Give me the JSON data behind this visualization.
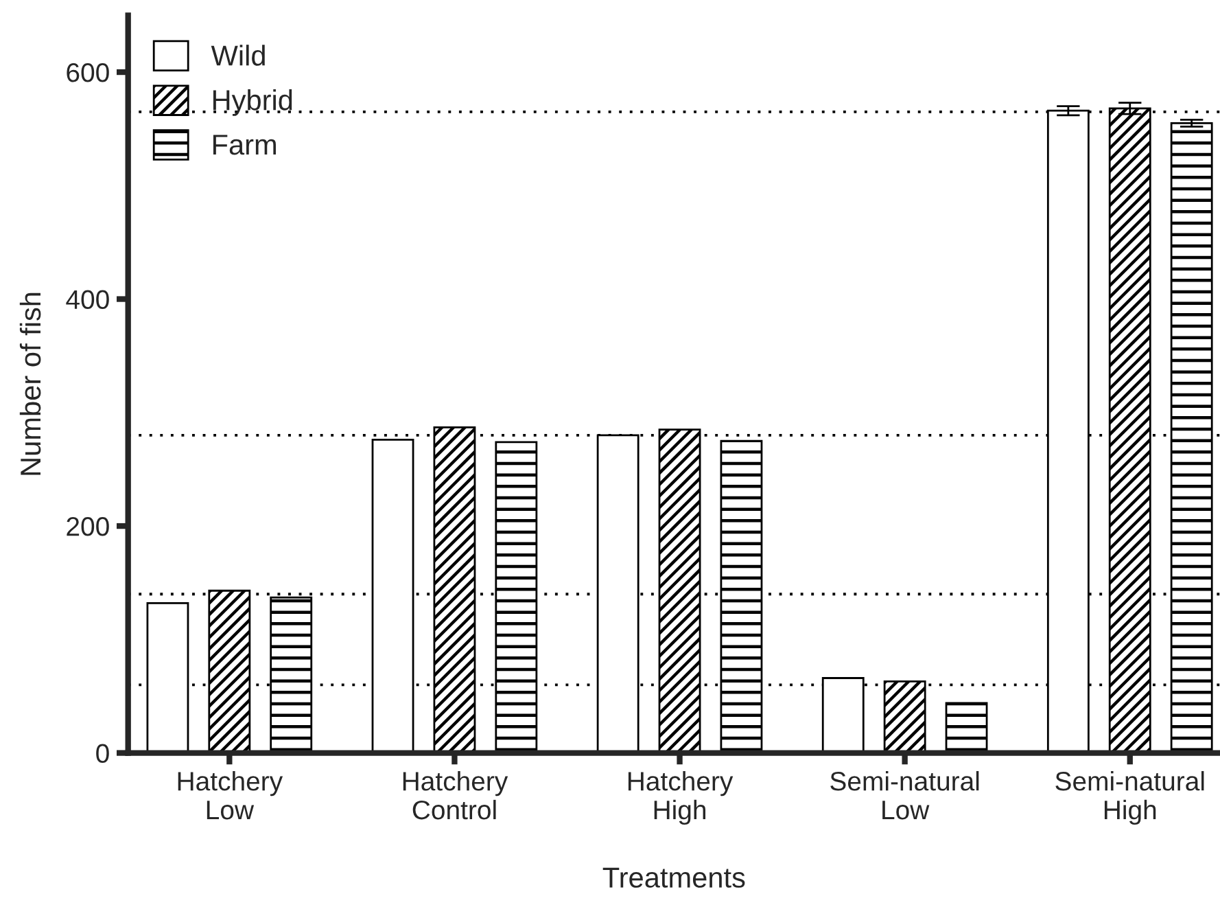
{
  "chart_data": {
    "type": "bar",
    "xlabel": "Treatments",
    "ylabel": "Number of fish",
    "categories": [
      "Hatchery\nLow",
      "Hatchery\nControl",
      "Hatchery\nHigh",
      "Semi-natural\nLow",
      "Semi-natural\nHigh"
    ],
    "series": [
      {
        "name": "Wild",
        "color": "#ffffff",
        "values": [
          132,
          276,
          280,
          66,
          566
        ],
        "errors": [
          null,
          null,
          null,
          null,
          4
        ]
      },
      {
        "name": "Hybrid",
        "color": "#000000",
        "values": [
          143,
          287,
          285,
          63,
          568
        ],
        "errors": [
          null,
          null,
          null,
          null,
          5
        ]
      },
      {
        "name": "Farm",
        "color": "#000000",
        "values": [
          137,
          274,
          275,
          44,
          555
        ],
        "errors": [
          null,
          null,
          null,
          null,
          3
        ]
      }
    ],
    "ylim": [
      0,
      650
    ],
    "yticks": [
      0,
      200,
      400,
      600
    ],
    "grid": false,
    "legend": "top left",
    "ref_lines": [
      {
        "axis": "y",
        "value": 565,
        "line_style": "dotted"
      },
      {
        "axis": "y",
        "value": 280,
        "line_style": "dotted"
      },
      {
        "axis": "y",
        "value": 140,
        "line_style": "dotted"
      },
      {
        "axis": "y",
        "value": 60,
        "line_style": "dotted"
      }
    ]
  }
}
